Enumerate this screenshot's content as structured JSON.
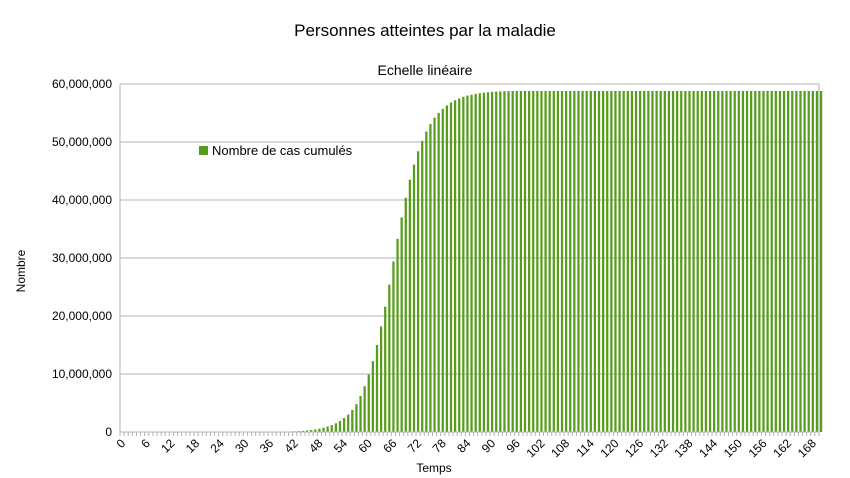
{
  "chart_data": {
    "type": "bar",
    "title": "Personnes atteintes par la maladie",
    "subtitle": "Echelle linéaire",
    "xlabel": "Temps",
    "ylabel": "Nombre",
    "legend_placement": "top-left inside plot",
    "grid": true,
    "ylim": [
      0,
      60000000
    ],
    "y_ticks": [
      0,
      10000000,
      20000000,
      30000000,
      40000000,
      50000000,
      60000000
    ],
    "y_tick_labels": [
      "0",
      "10,000,000",
      "20,000,000",
      "30,000,000",
      "40,000,000",
      "50,000,000",
      "60,000,000"
    ],
    "x_range": [
      0,
      170
    ],
    "x_tick_labels": [
      "0",
      "6",
      "12",
      "18",
      "24",
      "30",
      "36",
      "42",
      "48",
      "54",
      "60",
      "66",
      "72",
      "78",
      "84",
      "90",
      "96",
      "102",
      "108",
      "114",
      "120",
      "126",
      "132",
      "138",
      "144",
      "150",
      "156",
      "162",
      "168"
    ],
    "series": [
      {
        "name": "Nombre de cas cumulés",
        "color": "#579d1c",
        "values": [
          0,
          0,
          0,
          0,
          0,
          0,
          0,
          0,
          0,
          0,
          0,
          0,
          0,
          0,
          0,
          0,
          0,
          0,
          0,
          0,
          0,
          0,
          0,
          0,
          0,
          0,
          0,
          0,
          0,
          0,
          0,
          0,
          0,
          0,
          0,
          10000,
          20000,
          30000,
          40000,
          50000,
          70000,
          90000,
          120000,
          160000,
          200000,
          260000,
          340000,
          440000,
          570000,
          740000,
          950000,
          1200000,
          1500000,
          1900000,
          2400000,
          3000000,
          3800000,
          4800000,
          6200000,
          7900000,
          9900000,
          12200000,
          15000000,
          18200000,
          21600000,
          25400000,
          29400000,
          33300000,
          37000000,
          40400000,
          43500000,
          46100000,
          48400000,
          50200000,
          51800000,
          53100000,
          54200000,
          55000000,
          55700000,
          56300000,
          56800000,
          57200000,
          57500000,
          57800000,
          58000000,
          58150000,
          58300000,
          58400000,
          58500000,
          58580000,
          58640000,
          58690000,
          58730000,
          58760000,
          58780000,
          58790000,
          58800000,
          58800000,
          58800000,
          58800000,
          58800000,
          58800000,
          58800000,
          58800000,
          58800000,
          58800000,
          58800000,
          58800000,
          58800000,
          58800000,
          58800000,
          58800000,
          58800000,
          58800000,
          58800000,
          58800000,
          58800000,
          58800000,
          58800000,
          58800000,
          58800000,
          58800000,
          58800000,
          58800000,
          58800000,
          58800000,
          58800000,
          58800000,
          58800000,
          58800000,
          58800000,
          58800000,
          58800000,
          58800000,
          58800000,
          58800000,
          58800000,
          58800000,
          58800000,
          58800000,
          58800000,
          58800000,
          58800000,
          58800000,
          58800000,
          58800000,
          58800000,
          58800000,
          58800000,
          58800000,
          58800000,
          58800000,
          58800000,
          58800000,
          58800000,
          58800000,
          58800000,
          58800000,
          58800000,
          58800000,
          58800000,
          58800000,
          58800000,
          58800000,
          58800000,
          58800000,
          58800000,
          58800000,
          58800000,
          58800000,
          58800000
        ]
      }
    ]
  }
}
